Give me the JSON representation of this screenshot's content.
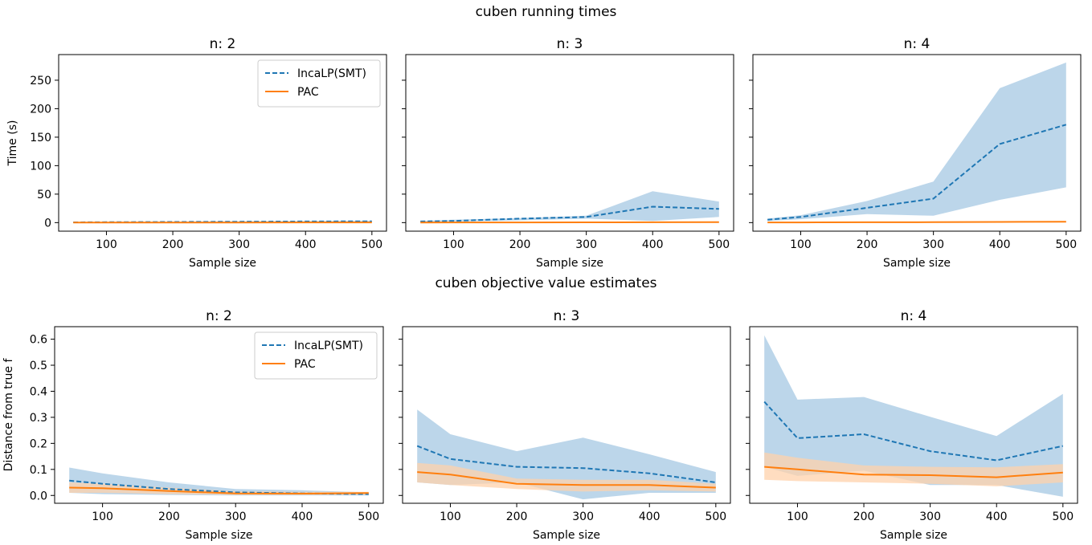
{
  "figure": {
    "title_top": "cuben running times",
    "title_bottom": "cuben objective value estimates"
  },
  "colors": {
    "incalp": "#1f77b4",
    "incalp_band": "#a6c8e3",
    "pac": "#ff7f0e",
    "pac_band": "#ffd2ab"
  },
  "chart_data": [
    {
      "type": "line",
      "title": "n: 2",
      "xlabel": "Sample size",
      "ylabel": "Time (s)",
      "x": [
        50,
        100,
        200,
        300,
        400,
        500
      ],
      "xticks": [
        100,
        200,
        300,
        400,
        500
      ],
      "xlim": [
        28,
        522
      ],
      "yticks": [
        0,
        50,
        100,
        150,
        200,
        250
      ],
      "ylim": [
        -15,
        295
      ],
      "legend": "top-right",
      "series": [
        {
          "name": "IncaLP(SMT)",
          "style": "dashed",
          "values": [
            0.5,
            0.8,
            1.2,
            1.6,
            2.0,
            2.4
          ],
          "lower": [
            0.2,
            0.4,
            0.6,
            0.9,
            1.2,
            1.5
          ],
          "upper": [
            0.8,
            1.2,
            1.8,
            2.3,
            2.8,
            3.3
          ]
        },
        {
          "name": "PAC",
          "style": "solid",
          "values": [
            0.1,
            0.1,
            0.2,
            0.2,
            0.3,
            0.3
          ],
          "lower": [
            0.0,
            0.0,
            0.1,
            0.1,
            0.1,
            0.1
          ],
          "upper": [
            0.2,
            0.2,
            0.3,
            0.4,
            0.5,
            0.5
          ]
        }
      ]
    },
    {
      "type": "line",
      "title": "n: 3",
      "xlabel": "Sample size",
      "x": [
        50,
        100,
        200,
        300,
        400,
        500
      ],
      "xticks": [
        100,
        200,
        300,
        400,
        500
      ],
      "xlim": [
        28,
        522
      ],
      "ylim": [
        -15,
        295
      ],
      "series": [
        {
          "name": "IncaLP(SMT)",
          "style": "dashed",
          "values": [
            2,
            3,
            7,
            10,
            28,
            24
          ],
          "lower": [
            1,
            2,
            4,
            7,
            3,
            10
          ],
          "upper": [
            3,
            5,
            8,
            12,
            55,
            37
          ]
        },
        {
          "name": "PAC",
          "style": "solid",
          "values": [
            0.2,
            0.3,
            0.4,
            0.5,
            0.6,
            0.8
          ],
          "lower": [
            0.1,
            0.1,
            0.2,
            0.3,
            0.3,
            0.4
          ],
          "upper": [
            0.3,
            0.5,
            0.6,
            0.7,
            0.9,
            1.2
          ]
        }
      ]
    },
    {
      "type": "line",
      "title": "n: 4",
      "xlabel": "Sample size",
      "x": [
        50,
        100,
        200,
        300,
        400,
        500
      ],
      "xticks": [
        100,
        200,
        300,
        400,
        500
      ],
      "xlim": [
        28,
        522
      ],
      "ylim": [
        -15,
        295
      ],
      "series": [
        {
          "name": "IncaLP(SMT)",
          "style": "dashed",
          "values": [
            5,
            10,
            26,
            42,
            138,
            172
          ],
          "lower": [
            3,
            6,
            15,
            12,
            40,
            62
          ],
          "upper": [
            7,
            13,
            38,
            72,
            236,
            281
          ]
        },
        {
          "name": "PAC",
          "style": "solid",
          "values": [
            0.3,
            0.4,
            0.6,
            0.8,
            1.2,
            1.6
          ],
          "lower": [
            0.1,
            0.2,
            0.3,
            0.4,
            0.6,
            0.8
          ],
          "upper": [
            0.5,
            0.6,
            0.9,
            1.2,
            1.8,
            2.4
          ]
        }
      ]
    },
    {
      "type": "line",
      "title": "n: 2",
      "xlabel": "Sample size",
      "ylabel": "Distance from true f",
      "x": [
        50,
        100,
        200,
        300,
        400,
        500
      ],
      "xticks": [
        100,
        200,
        300,
        400,
        500
      ],
      "xlim": [
        28,
        522
      ],
      "yticks": [
        0.0,
        0.1,
        0.2,
        0.3,
        0.4,
        0.5,
        0.6
      ],
      "ylim": [
        -0.03,
        0.648
      ],
      "legend": "top-right",
      "series": [
        {
          "name": "IncaLP(SMT)",
          "style": "dashed",
          "values": [
            0.057,
            0.045,
            0.025,
            0.012,
            0.008,
            0.005
          ],
          "lower": [
            0.01,
            0.005,
            0.002,
            0.0,
            0.0,
            0.0
          ],
          "upper": [
            0.107,
            0.085,
            0.05,
            0.025,
            0.02,
            0.012
          ]
        },
        {
          "name": "PAC",
          "style": "solid",
          "values": [
            0.03,
            0.028,
            0.017,
            0.008,
            0.007,
            0.009
          ],
          "lower": [
            0.01,
            0.01,
            0.005,
            0.002,
            0.002,
            0.004
          ],
          "upper": [
            0.05,
            0.045,
            0.03,
            0.016,
            0.014,
            0.014
          ]
        }
      ]
    },
    {
      "type": "line",
      "title": "n: 3",
      "xlabel": "Sample size",
      "x": [
        50,
        100,
        200,
        300,
        400,
        500
      ],
      "xticks": [
        100,
        200,
        300,
        400,
        500
      ],
      "xlim": [
        28,
        522
      ],
      "ylim": [
        -0.03,
        0.648
      ],
      "series": [
        {
          "name": "IncaLP(SMT)",
          "style": "dashed",
          "values": [
            0.19,
            0.14,
            0.11,
            0.105,
            0.085,
            0.05
          ],
          "lower": [
            0.05,
            0.04,
            0.05,
            -0.015,
            0.01,
            0.01
          ],
          "upper": [
            0.33,
            0.235,
            0.17,
            0.222,
            0.158,
            0.09
          ]
        },
        {
          "name": "PAC",
          "style": "solid",
          "values": [
            0.09,
            0.08,
            0.045,
            0.04,
            0.04,
            0.03
          ],
          "lower": [
            0.05,
            0.04,
            0.025,
            0.015,
            0.02,
            0.015
          ],
          "upper": [
            0.125,
            0.115,
            0.065,
            0.06,
            0.06,
            0.045
          ]
        }
      ]
    },
    {
      "type": "line",
      "title": "n: 4",
      "xlabel": "Sample size",
      "x": [
        50,
        100,
        200,
        300,
        400,
        500
      ],
      "xticks": [
        100,
        200,
        300,
        400,
        500
      ],
      "xlim": [
        28,
        522
      ],
      "ylim": [
        -0.03,
        0.648
      ],
      "series": [
        {
          "name": "IncaLP(SMT)",
          "style": "dashed",
          "values": [
            0.36,
            0.22,
            0.235,
            0.17,
            0.135,
            0.19
          ],
          "lower": [
            0.11,
            0.075,
            0.095,
            0.04,
            0.04,
            -0.005
          ],
          "upper": [
            0.615,
            0.368,
            0.378,
            0.302,
            0.228,
            0.39
          ]
        },
        {
          "name": "PAC",
          "style": "solid",
          "values": [
            0.11,
            0.1,
            0.08,
            0.078,
            0.07,
            0.088
          ],
          "lower": [
            0.06,
            0.055,
            0.05,
            0.045,
            0.035,
            0.05
          ],
          "upper": [
            0.165,
            0.145,
            0.115,
            0.11,
            0.108,
            0.12
          ]
        }
      ]
    }
  ]
}
